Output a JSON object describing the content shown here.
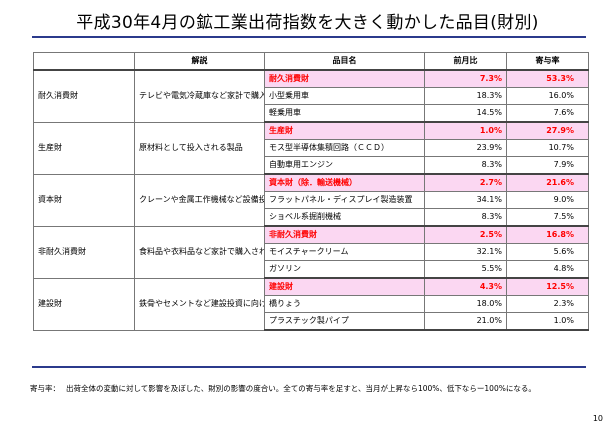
{
  "title": "平成30年4月の鉱工業出荷指数を大きく動かした品目(財別)",
  "table": {
    "headers": {
      "desc": "解説",
      "item": "品目名",
      "mom": "前月比",
      "contrib": "寄与率"
    },
    "groups": [
      {
        "category": "耐久消費財",
        "description": "テレビや電気冷蔵庫など家計で購入される製品",
        "rows": [
          {
            "name": "耐久消費財",
            "mom": "7.3%",
            "contrib": "53.3%",
            "highlight": true
          },
          {
            "name": "小型乗用車",
            "mom": "18.3%",
            "contrib": "16.0%"
          },
          {
            "name": "軽乗用車",
            "mom": "14.5%",
            "contrib": "7.6%"
          }
        ]
      },
      {
        "category": "生産財",
        "description": "原材料として投入される製品",
        "rows": [
          {
            "name": "生産財",
            "mom": "1.0%",
            "contrib": "27.9%",
            "highlight": true
          },
          {
            "name": "モス型半導体集積回路（ＣＣＤ）",
            "mom": "23.9%",
            "contrib": "10.7%"
          },
          {
            "name": "自動車用エンジン",
            "mom": "8.3%",
            "contrib": "7.9%"
          }
        ]
      },
      {
        "category": "資本財",
        "description": "クレーンや金属工作機械など設備投資に向けられる製品",
        "rows": [
          {
            "name": "資本財（除．輸送機械）",
            "mom": "2.7%",
            "contrib": "21.6%",
            "highlight": true
          },
          {
            "name": "フラットパネル・ディスプレイ製造装置",
            "mom": "34.1%",
            "contrib": "9.0%"
          },
          {
            "name": "ショベル系掘削機械",
            "mom": "8.3%",
            "contrib": "7.5%"
          }
        ]
      },
      {
        "category": "非耐久消費財",
        "description": "食料品や衣料品など家計で購入される製品",
        "rows": [
          {
            "name": "非耐久消費財",
            "mom": "2.5%",
            "contrib": "16.8%",
            "highlight": true
          },
          {
            "name": "モイスチャークリーム",
            "mom": "32.1%",
            "contrib": "5.6%"
          },
          {
            "name": "ガソリン",
            "mom": "5.5%",
            "contrib": "4.8%"
          }
        ]
      },
      {
        "category": "建設財",
        "description": "鉄骨やセメントなど建設投資に向けられる製品",
        "rows": [
          {
            "name": "建設財",
            "mom": "4.3%",
            "contrib": "12.5%",
            "highlight": true
          },
          {
            "name": "橋りょう",
            "mom": "18.0%",
            "contrib": "2.3%"
          },
          {
            "name": "プラスチック製パイプ",
            "mom": "21.0%",
            "contrib": "1.0%"
          }
        ]
      }
    ]
  },
  "footnote": {
    "label": "寄与率：",
    "text": "出荷全体の変動に対して影響を及ぼした、財別の影響の度合い。全ての寄与率を足すと、当月が上昇なら100%、低下ならー100%になる。"
  },
  "page_number": "10",
  "colors": {
    "highlight_bg": "#fbd7f2",
    "highlight_text": "#ff0000",
    "rule": "#2b3a8c"
  }
}
